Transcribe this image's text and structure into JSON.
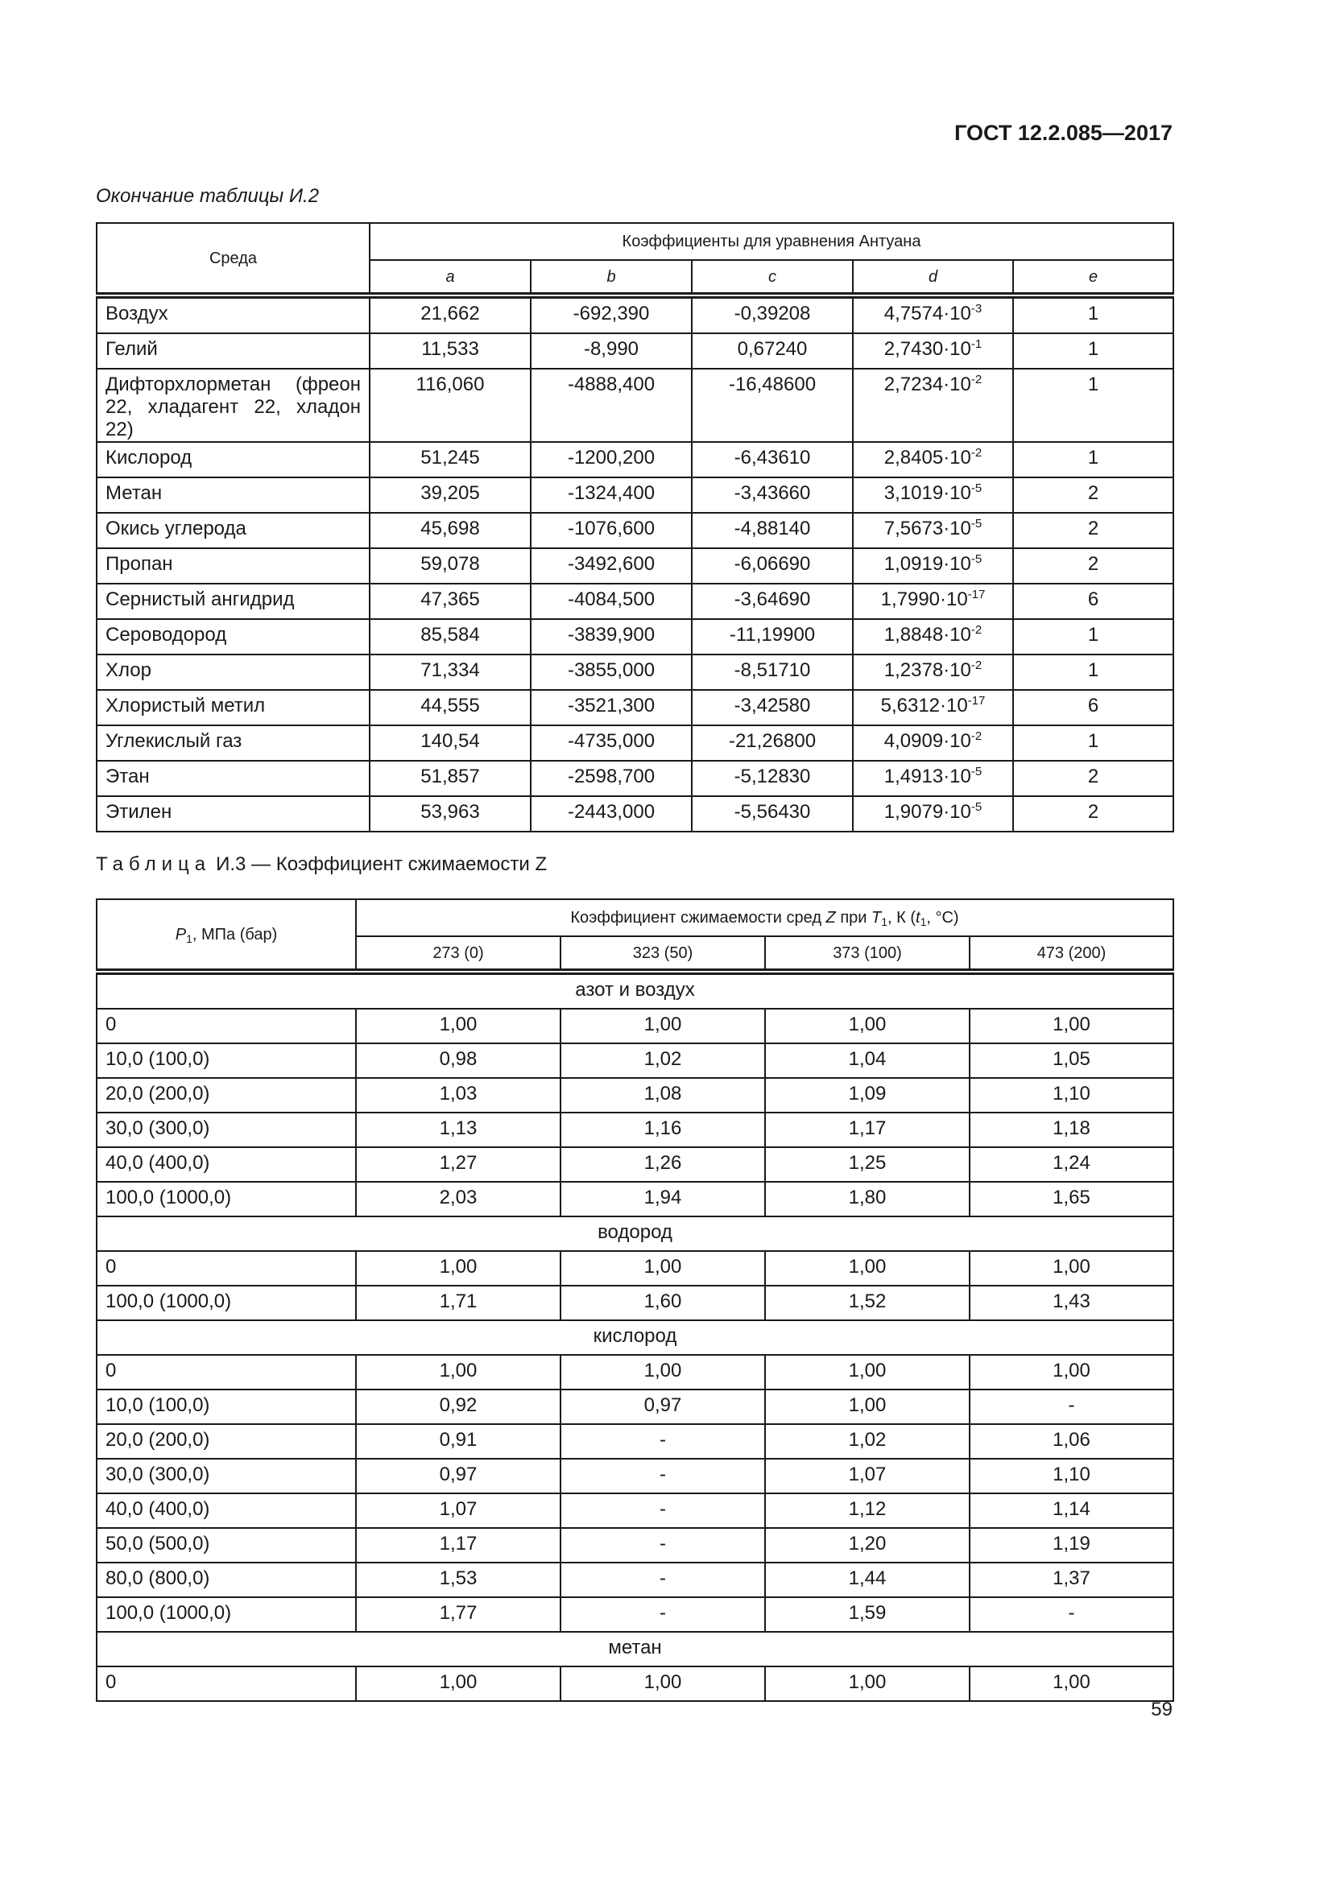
{
  "header": {
    "doc_id": "ГОСТ 12.2.085—2017"
  },
  "table1": {
    "caption": "Окончание таблицы И.2",
    "header": {
      "medium": "Среда",
      "group": "Коэффициенты для уравнения Антуана",
      "columns": [
        "a",
        "b",
        "c",
        "d",
        "e"
      ]
    },
    "rows": [
      [
        "Воздух",
        "21,662",
        "-692,390",
        "-0,39208",
        {
          "base": "4,7574·10",
          "exp": "-3"
        },
        "1"
      ],
      [
        "Гелий",
        "11,533",
        "-8,990",
        "0,67240",
        {
          "base": "2,7430·10",
          "exp": "-1"
        },
        "1"
      ],
      [
        "Дифторхлорметан (фреон 22, хладагент 22, хладон 22)",
        "116,060",
        "-4888,400",
        "-16,48600",
        {
          "base": "2,7234·10",
          "exp": "-2"
        },
        "1"
      ],
      [
        "Кислород",
        "51,245",
        "-1200,200",
        "-6,43610",
        {
          "base": "2,8405·10",
          "exp": "-2"
        },
        "1"
      ],
      [
        "Метан",
        "39,205",
        "-1324,400",
        "-3,43660",
        {
          "base": "3,1019·10",
          "exp": "-5"
        },
        "2"
      ],
      [
        "Окись углерода",
        "45,698",
        "-1076,600",
        "-4,88140",
        {
          "base": "7,5673·10",
          "exp": "-5"
        },
        "2"
      ],
      [
        "Пропан",
        "59,078",
        "-3492,600",
        "-6,06690",
        {
          "base": "1,0919·10",
          "exp": "-5"
        },
        "2"
      ],
      [
        "Сернистый ангидрид",
        "47,365",
        "-4084,500",
        "-3,64690",
        {
          "base": "1,7990·10",
          "exp": "-17"
        },
        "6"
      ],
      [
        "Сероводород",
        "85,584",
        "-3839,900",
        "-11,19900",
        {
          "base": "1,8848·10",
          "exp": "-2"
        },
        "1"
      ],
      [
        "Хлор",
        "71,334",
        "-3855,000",
        "-8,51710",
        {
          "base": "1,2378·10",
          "exp": "-2"
        },
        "1"
      ],
      [
        "Хлористый метил",
        "44,555",
        "-3521,300",
        "-3,42580",
        {
          "base": "5,6312·10",
          "exp": "-17"
        },
        "6"
      ],
      [
        "Углекислый газ",
        "140,54",
        "-4735,000",
        "-21,26800",
        {
          "base": "4,0909·10",
          "exp": "-2"
        },
        "1"
      ],
      [
        "Этан",
        "51,857",
        "-2598,700",
        "-5,12830",
        {
          "base": "1,4913·10",
          "exp": "-5"
        },
        "2"
      ],
      [
        "Этилен",
        "53,963",
        "-2443,000",
        "-5,56430",
        {
          "base": "1,9079·10",
          "exp": "-5"
        },
        "2"
      ]
    ]
  },
  "table2": {
    "title": {
      "label": "Таблица",
      "text": "И.3 — Коэффициент сжимаемости Z"
    },
    "header": {
      "pressure": [
        {
          "text": "P",
          "style": "italic"
        },
        {
          "text": "1",
          "style": "sub"
        },
        {
          "text": ", МПа (бар)",
          "style": "normal"
        }
      ],
      "group": [
        {
          "text": "Коэффициент сжимаемости сред ",
          "style": "normal"
        },
        {
          "text": "Z",
          "style": "italic"
        },
        {
          "text": " при ",
          "style": "normal"
        },
        {
          "text": "T",
          "style": "italic"
        },
        {
          "text": "1",
          "style": "sub"
        },
        {
          "text": ", К (",
          "style": "normal"
        },
        {
          "text": "t",
          "style": "italic"
        },
        {
          "text": "1",
          "style": "sub"
        },
        {
          "text": ", °C)",
          "style": "normal"
        }
      ],
      "columns": [
        "273 (0)",
        "323 (50)",
        "373 (100)",
        "473 (200)"
      ]
    },
    "sections": [
      {
        "name": "азот и воздух",
        "rows": [
          [
            "0",
            "1,00",
            "1,00",
            "1,00",
            "1,00"
          ],
          [
            "10,0 (100,0)",
            "0,98",
            "1,02",
            "1,04",
            "1,05"
          ],
          [
            "20,0 (200,0)",
            "1,03",
            "1,08",
            "1,09",
            "1,10"
          ],
          [
            "30,0 (300,0)",
            "1,13",
            "1,16",
            "1,17",
            "1,18"
          ],
          [
            "40,0 (400,0)",
            "1,27",
            "1,26",
            "1,25",
            "1,24"
          ],
          [
            "100,0 (1000,0)",
            "2,03",
            "1,94",
            "1,80",
            "1,65"
          ]
        ]
      },
      {
        "name": "водород",
        "rows": [
          [
            "0",
            "1,00",
            "1,00",
            "1,00",
            "1,00"
          ],
          [
            "100,0 (1000,0)",
            "1,71",
            "1,60",
            "1,52",
            "1,43"
          ]
        ]
      },
      {
        "name": "кислород",
        "rows": [
          [
            "0",
            "1,00",
            "1,00",
            "1,00",
            "1,00"
          ],
          [
            "10,0 (100,0)",
            "0,92",
            "0,97",
            "1,00",
            "-"
          ],
          [
            "20,0 (200,0)",
            "0,91",
            "-",
            "1,02",
            "1,06"
          ],
          [
            "30,0 (300,0)",
            "0,97",
            "-",
            "1,07",
            "1,10"
          ],
          [
            "40,0 (400,0)",
            "1,07",
            "-",
            "1,12",
            "1,14"
          ],
          [
            "50,0 (500,0)",
            "1,17",
            "-",
            "1,20",
            "1,19"
          ],
          [
            "80,0 (800,0)",
            "1,53",
            "-",
            "1,44",
            "1,37"
          ],
          [
            "100,0 (1000,0)",
            "1,77",
            "-",
            "1,59",
            "-"
          ]
        ]
      },
      {
        "name": "метан",
        "rows": [
          [
            "0",
            "1,00",
            "1,00",
            "1,00",
            "1,00"
          ]
        ]
      }
    ]
  },
  "footer": {
    "page_number": "59"
  }
}
